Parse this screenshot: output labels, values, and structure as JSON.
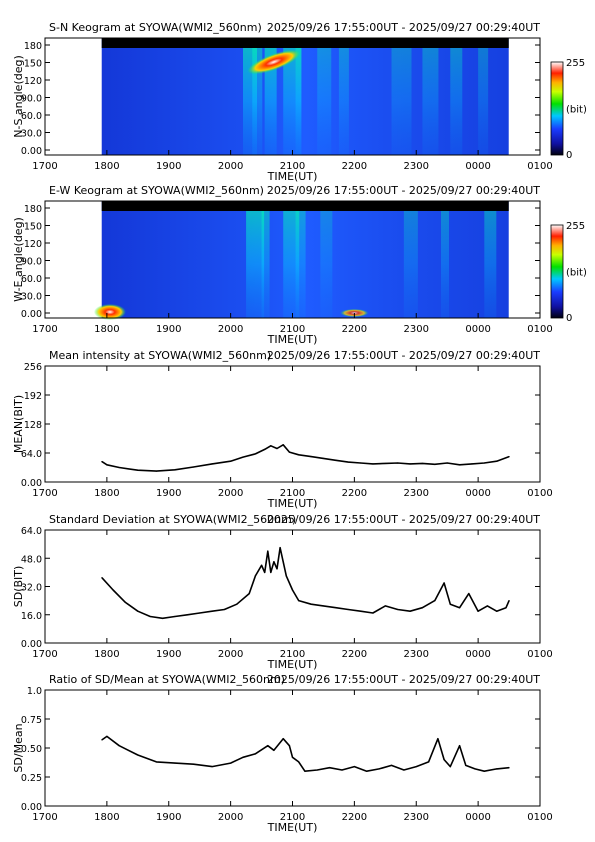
{
  "header_times": "2025/09/26 17:55:00UT - 2025/09/27 00:29:40UT",
  "colorbar": {
    "max": "255",
    "unit": "(bit)",
    "min": "0"
  },
  "x_axis": {
    "label": "TIME(UT)",
    "ticks": [
      "1700",
      "1800",
      "1900",
      "2000",
      "2100",
      "2200",
      "2300",
      "0000",
      "0100"
    ]
  },
  "chart_data": [
    {
      "type": "heatmap",
      "title": "S-N Keogram at SYOWA(WMI2_560nm)",
      "ylabel": "N-S angle(deg)",
      "yticks": [
        "180",
        "150",
        "120",
        "90.0",
        "60.0",
        "30.0",
        "0.00"
      ],
      "xlabel": "TIME(UT)",
      "xlim": [
        "17:00",
        "01:00"
      ],
      "data_range": [
        "17:55:00",
        "00:29:40"
      ],
      "color_scale": [
        0,
        255
      ]
    },
    {
      "type": "heatmap",
      "title": "E-W Keogram at SYOWA(WMI2_560nm)",
      "ylabel": "W-E angle(deg)",
      "yticks": [
        "180",
        "150",
        "120",
        "90.0",
        "60.0",
        "30.0",
        "0.00"
      ],
      "xlabel": "TIME(UT)",
      "xlim": [
        "17:00",
        "01:00"
      ],
      "data_range": [
        "17:55:00",
        "00:29:40"
      ],
      "color_scale": [
        0,
        255
      ]
    },
    {
      "type": "line",
      "title": "Mean intensity at SYOWA(WMI2_560nm)",
      "ylabel": "MEAN(BIT)",
      "xlabel": "TIME(UT)",
      "yticks": [
        "256",
        "192",
        "128",
        "64.0",
        "0.00"
      ],
      "ylim": [
        0,
        256
      ],
      "x": [
        17.92,
        18.0,
        18.2,
        18.5,
        18.8,
        19.1,
        19.4,
        19.7,
        20.0,
        20.2,
        20.4,
        20.55,
        20.65,
        20.75,
        20.85,
        20.95,
        21.1,
        21.3,
        21.5,
        21.7,
        21.9,
        22.1,
        22.3,
        22.5,
        22.7,
        22.9,
        23.1,
        23.3,
        23.5,
        23.7,
        23.9,
        24.1,
        24.3,
        24.5
      ],
      "y": [
        45,
        38,
        32,
        26,
        24,
        27,
        33,
        40,
        46,
        55,
        62,
        72,
        80,
        74,
        82,
        66,
        60,
        56,
        52,
        48,
        44,
        42,
        40,
        41,
        42,
        40,
        41,
        39,
        42,
        38,
        40,
        42,
        46,
        56
      ]
    },
    {
      "type": "line",
      "title": "Standard Deviation at SYOWA(WMI2_560nm)",
      "ylabel": "SD(BIT)",
      "xlabel": "TIME(UT)",
      "yticks": [
        "64.0",
        "48.0",
        "32.0",
        "16.0",
        "0.00"
      ],
      "ylim": [
        0,
        64
      ],
      "x": [
        17.92,
        18.1,
        18.3,
        18.5,
        18.7,
        18.9,
        19.1,
        19.3,
        19.5,
        19.7,
        19.9,
        20.1,
        20.3,
        20.4,
        20.5,
        20.55,
        20.6,
        20.65,
        20.7,
        20.75,
        20.8,
        20.85,
        20.9,
        21.0,
        21.1,
        21.3,
        21.5,
        21.7,
        21.9,
        22.1,
        22.3,
        22.5,
        22.7,
        22.9,
        23.1,
        23.3,
        23.45,
        23.55,
        23.7,
        23.85,
        24.0,
        24.15,
        24.3,
        24.45,
        24.5
      ],
      "y": [
        37,
        30,
        23,
        18,
        15,
        14,
        15,
        16,
        17,
        18,
        19,
        22,
        28,
        38,
        44,
        40,
        52,
        40,
        46,
        42,
        54,
        46,
        38,
        30,
        24,
        22,
        21,
        20,
        19,
        18,
        17,
        21,
        19,
        18,
        20,
        24,
        34,
        22,
        20,
        28,
        18,
        21,
        18,
        20,
        24
      ]
    },
    {
      "type": "line",
      "title": "Ratio of SD/Mean at SYOWA(WMI2_560nm)",
      "ylabel": "SD/Mean",
      "xlabel": "TIME(UT)",
      "yticks": [
        "1.0",
        "0.75",
        "0.50",
        "0.25",
        "0.00"
      ],
      "ylim": [
        0,
        1
      ],
      "x": [
        17.92,
        18.0,
        18.2,
        18.5,
        18.8,
        19.1,
        19.4,
        19.7,
        20.0,
        20.2,
        20.4,
        20.6,
        20.7,
        20.85,
        20.95,
        21.0,
        21.1,
        21.2,
        21.4,
        21.6,
        21.8,
        22.0,
        22.2,
        22.4,
        22.6,
        22.8,
        23.0,
        23.2,
        23.35,
        23.45,
        23.55,
        23.7,
        23.8,
        23.95,
        24.1,
        24.3,
        24.5
      ],
      "y": [
        0.57,
        0.6,
        0.52,
        0.44,
        0.38,
        0.37,
        0.36,
        0.34,
        0.37,
        0.42,
        0.45,
        0.52,
        0.48,
        0.58,
        0.52,
        0.42,
        0.38,
        0.3,
        0.31,
        0.33,
        0.31,
        0.34,
        0.3,
        0.32,
        0.35,
        0.31,
        0.34,
        0.38,
        0.58,
        0.4,
        0.34,
        0.52,
        0.35,
        0.32,
        0.3,
        0.32,
        0.33
      ]
    }
  ]
}
